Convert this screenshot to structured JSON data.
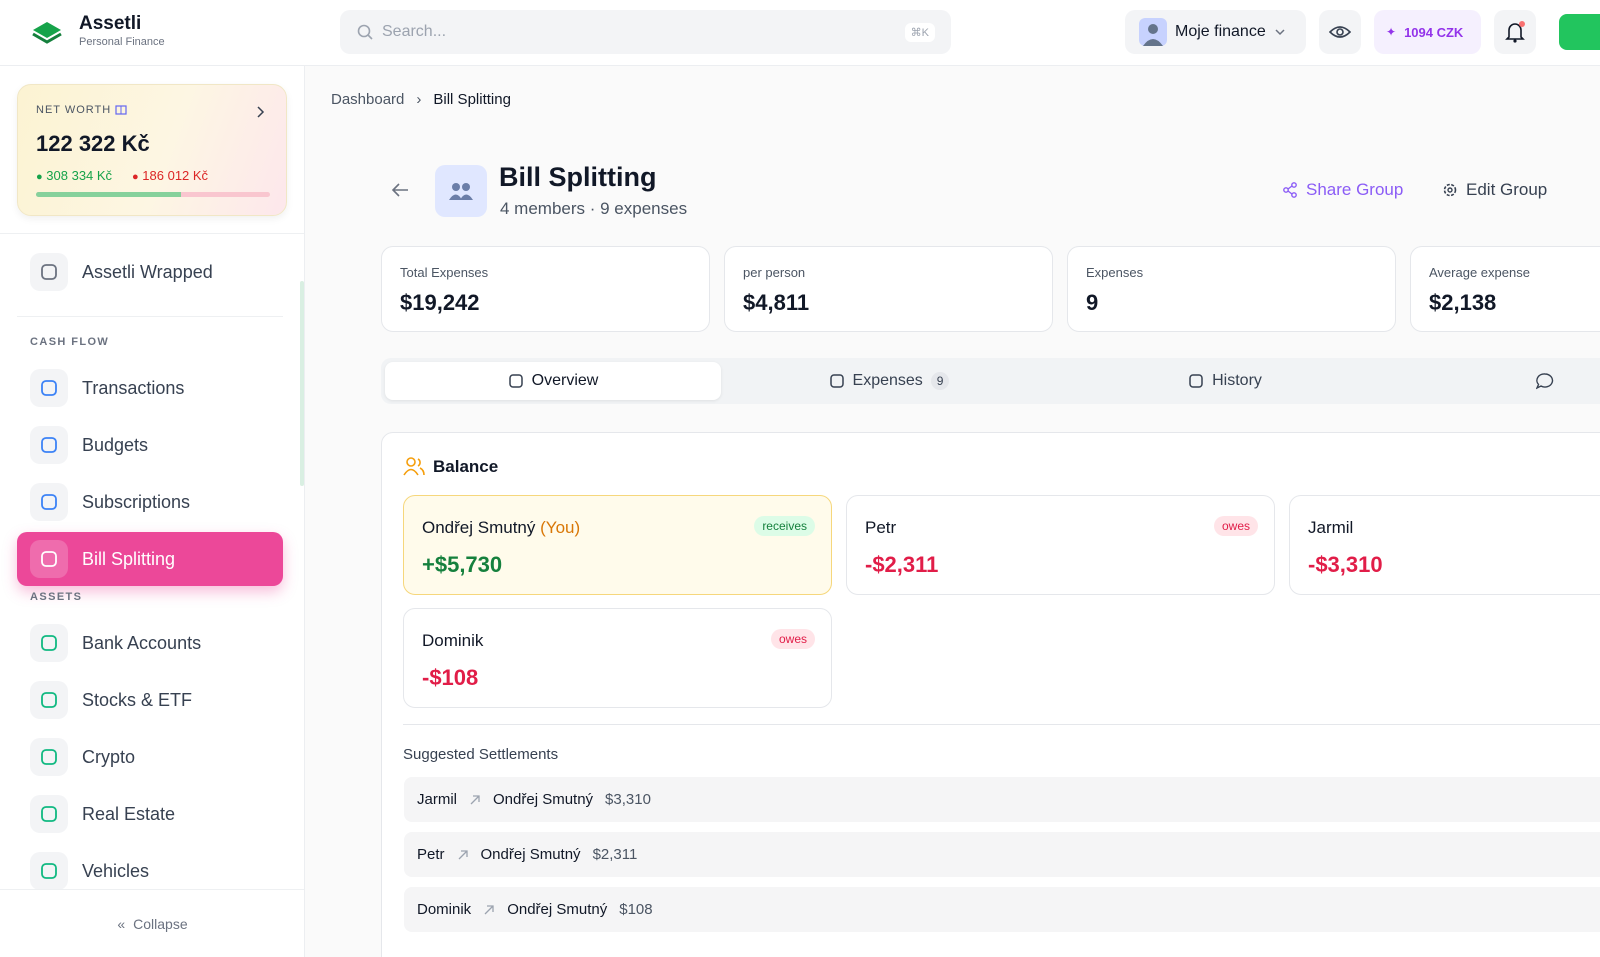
{
  "header": {
    "brand": "Assetli",
    "tagline": "Personal Finance",
    "search_placeholder": "Search...",
    "shortcut": "⌘K",
    "profile": "Moje finance",
    "credits": "1094 CZK"
  },
  "sidebar": {
    "net_worth": {
      "label": "NET WORTH",
      "value": "122 322 Kč",
      "income": "308 334 Kč",
      "expenses": "186 012 Kč"
    },
    "featured": "Assetli Wrapped",
    "sections": [
      {
        "title": "CASH FLOW",
        "items": [
          "Transactions",
          "Budgets",
          "Subscriptions",
          "Bill Splitting"
        ]
      },
      {
        "title": "ASSETS",
        "items": [
          "Bank Accounts",
          "Stocks & ETF",
          "Crypto",
          "Real Estate",
          "Vehicles"
        ]
      }
    ],
    "active": "Bill Splitting",
    "collapse": "Collapse"
  },
  "breadcrumb": [
    "Dashboard",
    "Bill Splitting"
  ],
  "group": {
    "title": "Bill Splitting",
    "subtitle": "4 members · 9 expenses",
    "actions": [
      "Share Group",
      "Edit Group"
    ]
  },
  "stats": [
    {
      "label": "Total Expenses",
      "value": "$19,242"
    },
    {
      "label": "per person",
      "value": "$4,811"
    },
    {
      "label": "Expenses",
      "value": "9"
    },
    {
      "label": "Average expense",
      "value": "$2,138"
    }
  ],
  "tabs": [
    {
      "label": "Overview",
      "active": true
    },
    {
      "label": "Expenses",
      "count": "9"
    },
    {
      "label": "History"
    }
  ],
  "balance": {
    "title": "Balance",
    "members": [
      {
        "name": "Ondřej Smutný",
        "tag": "(You)",
        "status": "receives",
        "amount": "+$5,730"
      },
      {
        "name": "Petr",
        "status": "owes",
        "amount": "-$2,311"
      },
      {
        "name": "Jarmil",
        "amount": "-$3,310"
      },
      {
        "name": "Dominik",
        "status": "owes",
        "amount": "-$108"
      }
    ]
  },
  "settlements": {
    "title": "Suggested Settlements",
    "rows": [
      {
        "from": "Jarmil",
        "to": "Ondřej Smutný",
        "amount": "$3,310"
      },
      {
        "from": "Petr",
        "to": "Ondřej Smutný",
        "amount": "$2,311"
      },
      {
        "from": "Dominik",
        "to": "Ondřej Smutný",
        "amount": "$108"
      }
    ]
  }
}
